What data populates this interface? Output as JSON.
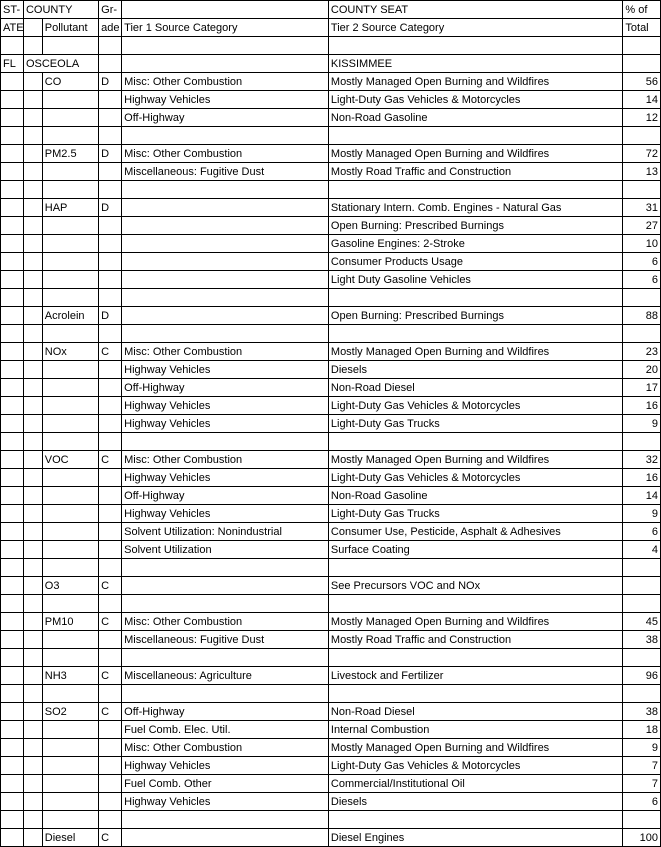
{
  "header": {
    "h1c1": "ST-",
    "h1c2": "COUNTY",
    "h1c3": "Gr-",
    "h1c4": "COUNTY SEAT",
    "h1c5": "% of",
    "h2c1": "ATE",
    "h2c2": "Pollutant",
    "h2c3": "ade",
    "h2c4": "Tier 1 Source Category",
    "h2c5": "Tier 2 Source Category",
    "h2c6": "Total"
  },
  "region": {
    "state": "FL",
    "county": "OSCEOLA",
    "seat": "KISSIMMEE"
  },
  "rows": [
    {
      "p": "CO",
      "g": "D",
      "t1": "Misc: Other Combustion",
      "t2": "Mostly Managed Open Burning and Wildfires",
      "pct": "56"
    },
    {
      "p": "",
      "g": "",
      "t1": "Highway Vehicles",
      "t2": "Light-Duty Gas Vehicles & Motorcycles",
      "pct": "14"
    },
    {
      "p": "",
      "g": "",
      "t1": "Off-Highway",
      "t2": "Non-Road Gasoline",
      "pct": "12"
    },
    {
      "p": "",
      "g": "",
      "t1": "",
      "t2": "",
      "pct": ""
    },
    {
      "p": "PM2.5",
      "g": "D",
      "t1": "Misc: Other Combustion",
      "t2": "Mostly Managed Open Burning and Wildfires",
      "pct": "72"
    },
    {
      "p": "",
      "g": "",
      "t1": "Miscellaneous: Fugitive Dust",
      "t2": "Mostly Road Traffic and Construction",
      "pct": "13"
    },
    {
      "p": "",
      "g": "",
      "t1": "",
      "t2": "",
      "pct": ""
    },
    {
      "p": "HAP",
      "g": "D",
      "t1": "",
      "t2": "Stationary Intern. Comb. Engines - Natural Gas",
      "pct": "31"
    },
    {
      "p": "",
      "g": "",
      "t1": "",
      "t2": "Open Burning:  Prescribed Burnings",
      "pct": "27"
    },
    {
      "p": "",
      "g": "",
      "t1": "",
      "t2": "Gasoline Engines: 2-Stroke",
      "pct": "10"
    },
    {
      "p": "",
      "g": "",
      "t1": "",
      "t2": "Consumer Products Usage",
      "pct": "6"
    },
    {
      "p": "",
      "g": "",
      "t1": "",
      "t2": "Light Duty Gasoline Vehicles",
      "pct": "6"
    },
    {
      "p": "",
      "g": "",
      "t1": "",
      "t2": "",
      "pct": ""
    },
    {
      "p": "Acrolein",
      "g": "D",
      "t1": "",
      "t2": "Open Burning:  Prescribed Burnings",
      "pct": "88"
    },
    {
      "p": "",
      "g": "",
      "t1": "",
      "t2": "",
      "pct": ""
    },
    {
      "p": "NOx",
      "g": "C",
      "t1": "Misc: Other Combustion",
      "t2": "Mostly Managed Open Burning and Wildfires",
      "pct": "23"
    },
    {
      "p": "",
      "g": "",
      "t1": "Highway Vehicles",
      "t2": "Diesels",
      "pct": "20"
    },
    {
      "p": "",
      "g": "",
      "t1": "Off-Highway",
      "t2": "Non-Road Diesel",
      "pct": "17"
    },
    {
      "p": "",
      "g": "",
      "t1": "Highway Vehicles",
      "t2": "Light-Duty Gas Vehicles & Motorcycles",
      "pct": "16"
    },
    {
      "p": "",
      "g": "",
      "t1": "Highway Vehicles",
      "t2": "Light-Duty Gas Trucks",
      "pct": "9"
    },
    {
      "p": "",
      "g": "",
      "t1": "",
      "t2": "",
      "pct": ""
    },
    {
      "p": "VOC",
      "g": "C",
      "t1": "Misc: Other Combustion",
      "t2": "Mostly Managed Open Burning and Wildfires",
      "pct": "32"
    },
    {
      "p": "",
      "g": "",
      "t1": "Highway Vehicles",
      "t2": "Light-Duty Gas Vehicles & Motorcycles",
      "pct": "16"
    },
    {
      "p": "",
      "g": "",
      "t1": "Off-Highway",
      "t2": "Non-Road Gasoline",
      "pct": "14"
    },
    {
      "p": "",
      "g": "",
      "t1": "Highway Vehicles",
      "t2": "Light-Duty Gas Trucks",
      "pct": "9"
    },
    {
      "p": "",
      "g": "",
      "t1": "Solvent Utilization: Nonindustrial",
      "t2": "Consumer Use, Pesticide, Asphalt & Adhesives",
      "pct": "6"
    },
    {
      "p": "",
      "g": "",
      "t1": "Solvent Utilization",
      "t2": "Surface Coating",
      "pct": "4"
    },
    {
      "p": "",
      "g": "",
      "t1": "",
      "t2": "",
      "pct": ""
    },
    {
      "p": "O3",
      "g": "C",
      "t1": "",
      "t2": "See Precursors VOC and NOx",
      "pct": ""
    },
    {
      "p": "",
      "g": "",
      "t1": "",
      "t2": "",
      "pct": ""
    },
    {
      "p": "PM10",
      "g": "C",
      "t1": "Misc: Other Combustion",
      "t2": "Mostly Managed Open Burning and Wildfires",
      "pct": "45"
    },
    {
      "p": "",
      "g": "",
      "t1": "Miscellaneous: Fugitive Dust",
      "t2": "Mostly Road Traffic and Construction",
      "pct": "38"
    },
    {
      "p": "",
      "g": "",
      "t1": "",
      "t2": "",
      "pct": ""
    },
    {
      "p": "NH3",
      "g": "C",
      "t1": "Miscellaneous: Agriculture",
      "t2": "Livestock and Fertilizer",
      "pct": "96"
    },
    {
      "p": "",
      "g": "",
      "t1": "",
      "t2": "",
      "pct": ""
    },
    {
      "p": "SO2",
      "g": "C",
      "t1": "Off-Highway",
      "t2": "Non-Road Diesel",
      "pct": "38"
    },
    {
      "p": "",
      "g": "",
      "t1": "Fuel Comb. Elec. Util.",
      "t2": "Internal Combustion",
      "pct": "18"
    },
    {
      "p": "",
      "g": "",
      "t1": "Misc: Other Combustion",
      "t2": "Mostly Managed Open Burning and Wildfires",
      "pct": "9"
    },
    {
      "p": "",
      "g": "",
      "t1": "Highway Vehicles",
      "t2": "Light-Duty Gas Vehicles & Motorcycles",
      "pct": "7"
    },
    {
      "p": "",
      "g": "",
      "t1": "Fuel Comb. Other",
      "t2": "Commercial/Institutional Oil",
      "pct": "7"
    },
    {
      "p": "",
      "g": "",
      "t1": "Highway Vehicles",
      "t2": "Diesels",
      "pct": "6"
    },
    {
      "p": "",
      "g": "",
      "t1": "",
      "t2": "",
      "pct": ""
    },
    {
      "p": "Diesel",
      "g": "C",
      "t1": "",
      "t2": "Diesel Engines",
      "pct": "100"
    }
  ]
}
